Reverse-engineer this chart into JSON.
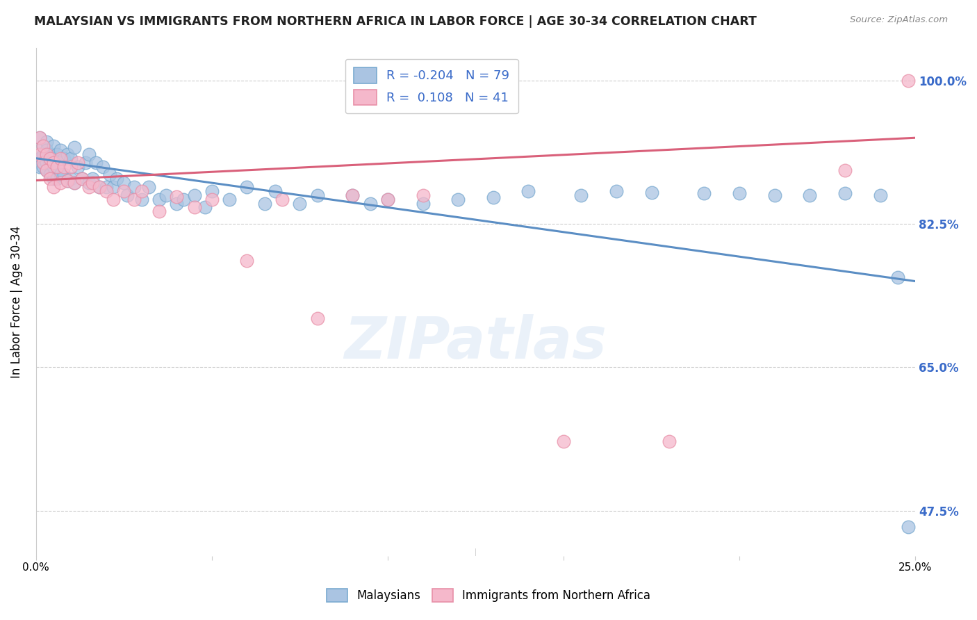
{
  "title": "MALAYSIAN VS IMMIGRANTS FROM NORTHERN AFRICA IN LABOR FORCE | AGE 30-34 CORRELATION CHART",
  "source": "Source: ZipAtlas.com",
  "ylabel": "In Labor Force | Age 30-34",
  "legend_blue_r": "-0.204",
  "legend_blue_n": "79",
  "legend_pink_r": "0.108",
  "legend_pink_n": "41",
  "blue_color": "#aac4e2",
  "pink_color": "#f5b8cb",
  "blue_edge_color": "#7aaad0",
  "pink_edge_color": "#e890a8",
  "blue_line_color": "#5b8ec4",
  "pink_line_color": "#d9607a",
  "watermark": "ZIPatlas",
  "blue_points_x": [
    0.001,
    0.001,
    0.001,
    0.002,
    0.002,
    0.002,
    0.003,
    0.003,
    0.003,
    0.003,
    0.004,
    0.004,
    0.004,
    0.005,
    0.005,
    0.005,
    0.005,
    0.006,
    0.006,
    0.006,
    0.007,
    0.007,
    0.008,
    0.008,
    0.009,
    0.009,
    0.01,
    0.01,
    0.011,
    0.011,
    0.012,
    0.013,
    0.014,
    0.015,
    0.015,
    0.016,
    0.017,
    0.018,
    0.019,
    0.02,
    0.021,
    0.022,
    0.023,
    0.025,
    0.026,
    0.028,
    0.03,
    0.032,
    0.035,
    0.037,
    0.04,
    0.042,
    0.045,
    0.048,
    0.05,
    0.055,
    0.06,
    0.065,
    0.068,
    0.075,
    0.08,
    0.09,
    0.095,
    0.1,
    0.11,
    0.12,
    0.13,
    0.14,
    0.155,
    0.165,
    0.175,
    0.19,
    0.2,
    0.21,
    0.22,
    0.23,
    0.24,
    0.245,
    0.248
  ],
  "blue_points_y": [
    0.93,
    0.905,
    0.895,
    0.92,
    0.91,
    0.895,
    0.925,
    0.915,
    0.9,
    0.89,
    0.91,
    0.9,
    0.885,
    0.92,
    0.905,
    0.895,
    0.88,
    0.91,
    0.895,
    0.88,
    0.915,
    0.885,
    0.905,
    0.885,
    0.91,
    0.878,
    0.905,
    0.88,
    0.918,
    0.875,
    0.895,
    0.88,
    0.9,
    0.91,
    0.875,
    0.88,
    0.9,
    0.87,
    0.895,
    0.87,
    0.885,
    0.87,
    0.88,
    0.875,
    0.86,
    0.87,
    0.855,
    0.87,
    0.855,
    0.86,
    0.85,
    0.855,
    0.86,
    0.845,
    0.865,
    0.855,
    0.87,
    0.85,
    0.865,
    0.85,
    0.86,
    0.86,
    0.85,
    0.855,
    0.85,
    0.855,
    0.857,
    0.865,
    0.86,
    0.865,
    0.863,
    0.862,
    0.862,
    0.86,
    0.86,
    0.862,
    0.86,
    0.76,
    0.455
  ],
  "pink_points_x": [
    0.001,
    0.001,
    0.002,
    0.002,
    0.003,
    0.003,
    0.004,
    0.004,
    0.005,
    0.005,
    0.006,
    0.007,
    0.007,
    0.008,
    0.009,
    0.01,
    0.011,
    0.012,
    0.013,
    0.015,
    0.016,
    0.018,
    0.02,
    0.022,
    0.025,
    0.028,
    0.03,
    0.035,
    0.04,
    0.045,
    0.05,
    0.06,
    0.07,
    0.08,
    0.09,
    0.1,
    0.11,
    0.15,
    0.18,
    0.23,
    0.248
  ],
  "pink_points_y": [
    0.93,
    0.91,
    0.92,
    0.9,
    0.91,
    0.89,
    0.905,
    0.88,
    0.9,
    0.87,
    0.895,
    0.905,
    0.875,
    0.895,
    0.878,
    0.895,
    0.875,
    0.9,
    0.88,
    0.87,
    0.875,
    0.87,
    0.865,
    0.855,
    0.865,
    0.855,
    0.865,
    0.84,
    0.858,
    0.845,
    0.855,
    0.78,
    0.855,
    0.71,
    0.86,
    0.855,
    0.86,
    0.56,
    0.56,
    0.89,
    1.0
  ],
  "xlim": [
    0.0,
    0.25
  ],
  "ylim": [
    0.42,
    1.04
  ],
  "ytick_vals": [
    1.0,
    0.825,
    0.65,
    0.475
  ],
  "ytick_labels": [
    "100.0%",
    "82.5%",
    "65.0%",
    "47.5%"
  ],
  "blue_line_x0": 0.0,
  "blue_line_y0": 0.905,
  "blue_line_x1": 0.25,
  "blue_line_y1": 0.755,
  "pink_line_x0": 0.0,
  "pink_line_y0": 0.878,
  "pink_line_x1": 0.25,
  "pink_line_y1": 0.93
}
